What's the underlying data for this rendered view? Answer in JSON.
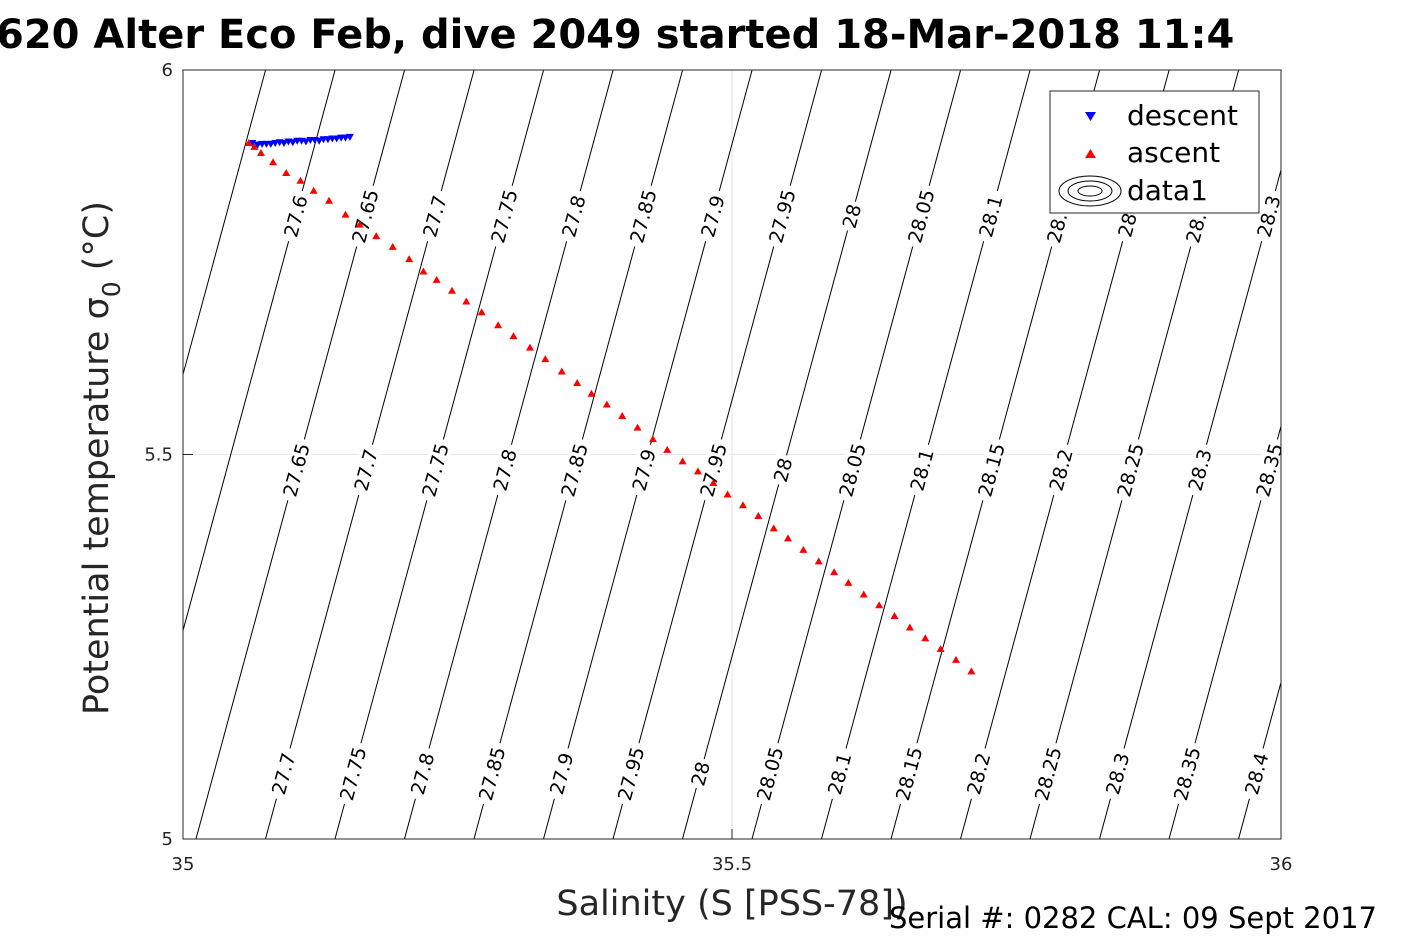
{
  "title": "620 Alter Eco Feb, dive 2049 started 18-Mar-2018 11:4",
  "footer": "Serial #: 0282  CAL: 09 Sept 2017",
  "chart_data": {
    "type": "scatter",
    "xlabel": "Salinity (S [PSS-78])",
    "ylabel": "Potential temperature σ",
    "ylabel_subscript": "0",
    "ylabel_unit": " (°C)",
    "xlim": [
      35,
      36
    ],
    "ylim": [
      5,
      6
    ],
    "xticks": [
      "35",
      "35.5",
      "36"
    ],
    "yticks": [
      "5",
      "5.5",
      "6"
    ],
    "grid": true,
    "legend_position": "top-right",
    "series": [
      {
        "name": "descent",
        "marker": "triangle-down",
        "color": "#0000ff",
        "points": [
          [
            35.063,
            5.905
          ],
          [
            35.068,
            5.903
          ],
          [
            35.072,
            5.904
          ],
          [
            35.076,
            5.904
          ],
          [
            35.08,
            5.904
          ],
          [
            35.084,
            5.905
          ],
          [
            35.088,
            5.906
          ],
          [
            35.092,
            5.905
          ],
          [
            35.096,
            5.907
          ],
          [
            35.1,
            5.906
          ],
          [
            35.104,
            5.908
          ],
          [
            35.108,
            5.908
          ],
          [
            35.112,
            5.907
          ],
          [
            35.116,
            5.909
          ],
          [
            35.12,
            5.909
          ],
          [
            35.124,
            5.908
          ],
          [
            35.128,
            5.91
          ],
          [
            35.132,
            5.91
          ],
          [
            35.136,
            5.911
          ],
          [
            35.14,
            5.911
          ],
          [
            35.144,
            5.912
          ],
          [
            35.148,
            5.912
          ],
          [
            35.152,
            5.913
          ]
        ]
      },
      {
        "name": "ascent",
        "marker": "triangle-up",
        "color": "#ff0000",
        "points": [
          [
            35.06,
            5.905
          ],
          [
            35.065,
            5.9
          ],
          [
            35.071,
            5.892
          ],
          [
            35.082,
            5.88
          ],
          [
            35.094,
            5.866
          ],
          [
            35.107,
            5.856
          ],
          [
            35.119,
            5.843
          ],
          [
            35.133,
            5.83
          ],
          [
            35.148,
            5.812
          ],
          [
            35.161,
            5.799
          ],
          [
            35.176,
            5.784
          ],
          [
            35.191,
            5.77
          ],
          [
            35.206,
            5.754
          ],
          [
            35.219,
            5.738
          ],
          [
            35.231,
            5.727
          ],
          [
            35.245,
            5.713
          ],
          [
            35.258,
            5.699
          ],
          [
            35.272,
            5.685
          ],
          [
            35.287,
            5.668
          ],
          [
            35.301,
            5.654
          ],
          [
            35.316,
            5.639
          ],
          [
            35.33,
            5.624
          ],
          [
            35.345,
            5.608
          ],
          [
            35.359,
            5.593
          ],
          [
            35.372,
            5.579
          ],
          [
            35.386,
            5.565
          ],
          [
            35.4,
            5.55
          ],
          [
            35.414,
            5.535
          ],
          [
            35.428,
            5.52
          ],
          [
            35.441,
            5.506
          ],
          [
            35.455,
            5.491
          ],
          [
            35.469,
            5.478
          ],
          [
            35.483,
            5.463
          ],
          [
            35.496,
            5.448
          ],
          [
            35.51,
            5.434
          ],
          [
            35.524,
            5.42
          ],
          [
            35.538,
            5.404
          ],
          [
            35.551,
            5.391
          ],
          [
            35.565,
            5.376
          ],
          [
            35.579,
            5.361
          ],
          [
            35.593,
            5.347
          ],
          [
            35.606,
            5.333
          ],
          [
            35.62,
            5.318
          ],
          [
            35.634,
            5.304
          ],
          [
            35.648,
            5.29
          ],
          [
            35.662,
            5.275
          ],
          [
            35.676,
            5.261
          ],
          [
            35.69,
            5.247
          ],
          [
            35.704,
            5.233
          ],
          [
            35.718,
            5.218
          ]
        ]
      },
      {
        "name": "data1",
        "marker": "contour"
      }
    ],
    "contour_levels": [
      "27.6",
      "27.65",
      "27.7",
      "27.75",
      "27.8",
      "27.85",
      "27.9",
      "27.95",
      "28",
      "28.05",
      "28.1",
      "28.15",
      "28.2",
      "28.25",
      "28.3",
      "28.35",
      "28.4"
    ],
    "contour_labels_top": [
      "27.6",
      "27.65",
      "27.7",
      "27.75",
      "27.8",
      "27.85",
      "27.9",
      "27.95",
      "28",
      "28.05",
      "28.1",
      "28.15",
      "28.2",
      "28.25",
      "28.3",
      "28.35"
    ],
    "contour_labels_mid": [
      "27.65",
      "27.7",
      "27.75",
      "27.8",
      "27.85",
      "27.9",
      "27.95",
      "28",
      "28.05",
      "28.1",
      "28.15",
      "28.2",
      "28.25",
      "28.3",
      "28.35",
      "28.4"
    ],
    "contour_labels_bottom": [
      "27.7",
      "27.75",
      "27.8",
      "27.85",
      "27.9",
      "27.95",
      "28",
      "28.05",
      "28.1",
      "28.15",
      "28.2",
      "28.25",
      "28.3",
      "28.35",
      "28.4"
    ]
  }
}
